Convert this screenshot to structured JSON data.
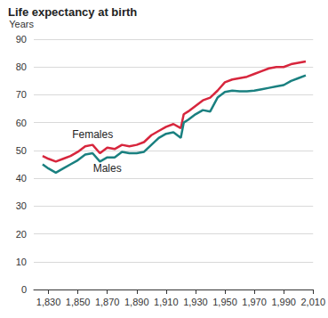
{
  "chart_data": {
    "type": "line",
    "title": "Life expectancy at birth",
    "y_label": "Years",
    "x": [
      1826,
      1830,
      1835,
      1840,
      1845,
      1850,
      1855,
      1860,
      1865,
      1870,
      1875,
      1880,
      1885,
      1890,
      1895,
      1900,
      1905,
      1910,
      1915,
      1920,
      1922,
      1925,
      1930,
      1935,
      1940,
      1945,
      1950,
      1955,
      1960,
      1965,
      1970,
      1975,
      1980,
      1985,
      1990,
      1995,
      2000,
      2005
    ],
    "series": [
      {
        "name": "Females",
        "color": "#d7263d",
        "values": [
          48,
          47,
          46,
          47,
          48,
          49.5,
          51.5,
          52,
          49,
          51,
          50.5,
          52,
          51.5,
          52,
          53,
          55.5,
          57,
          58.5,
          59.5,
          58,
          63,
          64,
          66,
          68,
          69,
          71.5,
          74.5,
          75.5,
          76,
          76.5,
          77.5,
          78.5,
          79.5,
          80,
          80,
          81,
          81.5,
          82
        ]
      },
      {
        "name": "Males",
        "color": "#1a8080",
        "values": [
          45,
          43.5,
          42,
          43.5,
          45,
          46.5,
          48.5,
          49,
          46,
          47.5,
          47.5,
          49.5,
          49,
          49,
          49.5,
          52,
          54.5,
          56,
          56.5,
          54.5,
          60,
          61,
          63,
          64.5,
          64,
          69,
          71,
          71.5,
          71.3,
          71.3,
          71.5,
          72,
          72.5,
          73,
          73.5,
          75,
          76,
          77
        ]
      }
    ],
    "xlim": [
      1820,
      2010
    ],
    "ylim": [
      0,
      90
    ],
    "xticks": [
      1830,
      1850,
      1870,
      1890,
      1910,
      1930,
      1950,
      1970,
      1990,
      2010
    ],
    "yticks": [
      0,
      10,
      20,
      30,
      40,
      50,
      60,
      70,
      80,
      90
    ],
    "grid": true
  }
}
